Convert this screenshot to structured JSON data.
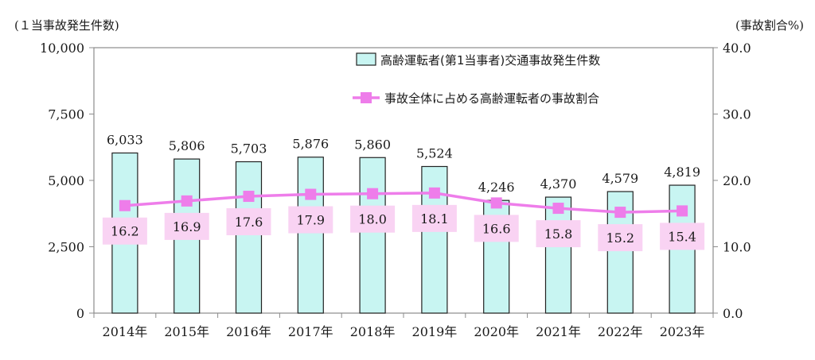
{
  "chart_data": {
    "type": "bar",
    "categories": [
      "2014年",
      "2015年",
      "2016年",
      "2017年",
      "2018年",
      "2019年",
      "2020年",
      "2021年",
      "2022年",
      "2023年"
    ],
    "series": [
      {
        "name": "高齢運転者(第1当事者)交通事故発生件数",
        "type": "bar",
        "axis": "left",
        "color": "#c8f5f2",
        "values": [
          6033,
          5806,
          5703,
          5876,
          5860,
          5524,
          4246,
          4370,
          4579,
          4819
        ],
        "labels": [
          "6,033",
          "5,806",
          "5,703",
          "5,876",
          "5,860",
          "5,524",
          "4,246",
          "4,370",
          "4,579",
          "4,819"
        ]
      },
      {
        "name": "事故全体に占める高齢運転者の事故割合",
        "type": "line",
        "axis": "right",
        "color": "#ee7dea",
        "label_bg": "#f9d3f3",
        "values": [
          16.2,
          16.9,
          17.6,
          17.9,
          18.0,
          18.1,
          16.6,
          15.8,
          15.2,
          15.4
        ],
        "labels": [
          "16.2",
          "16.9",
          "17.6",
          "17.9",
          "18.0",
          "18.1",
          "16.6",
          "15.8",
          "15.2",
          "15.4"
        ]
      }
    ],
    "left_axis": {
      "unit": "(１当事故発生件数)",
      "ylim": [
        0,
        10000
      ],
      "ticks": [
        0,
        2500,
        5000,
        7500,
        10000
      ],
      "tick_labels": [
        "0",
        "2,500",
        "5,000",
        "7,500",
        "10,000"
      ]
    },
    "right_axis": {
      "unit": "(事故割合%)",
      "ylim": [
        0,
        40
      ],
      "ticks": [
        0,
        10,
        20,
        30,
        40
      ],
      "tick_labels": [
        "0.0",
        "10.0",
        "20.0",
        "30.0",
        "40.0"
      ]
    },
    "grid": false,
    "legend_position": "top-right"
  }
}
